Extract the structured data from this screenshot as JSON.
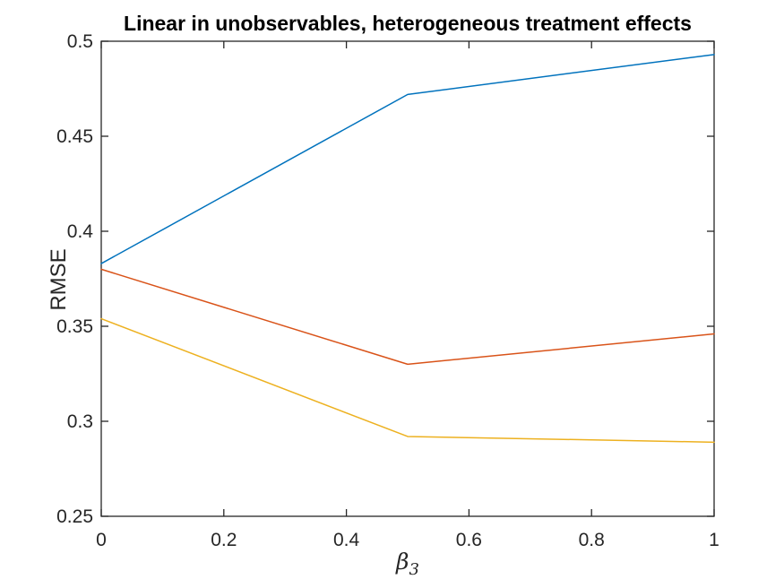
{
  "chart_data": {
    "type": "line",
    "title": "Linear in unobservables, heterogeneous treatment effects",
    "ylabel": "RMSE",
    "xlabel": "β",
    "xlabel_subscript": "3",
    "x": [
      0,
      0.5,
      1
    ],
    "series": [
      {
        "color": "#0072BD",
        "values": [
          0.383,
          0.472,
          0.493
        ]
      },
      {
        "color": "#D95319",
        "values": [
          0.38,
          0.33,
          0.346
        ]
      },
      {
        "color": "#EDB120",
        "values": [
          0.354,
          0.292,
          0.289
        ]
      }
    ],
    "xlim": [
      0,
      1
    ],
    "ylim": [
      0.25,
      0.5
    ],
    "xticks": [
      0,
      0.2,
      0.4,
      0.6,
      0.8,
      1
    ],
    "xtick_labels": [
      "0",
      "0.2",
      "0.4",
      "0.6",
      "0.8",
      "1"
    ],
    "yticks": [
      0.25,
      0.3,
      0.35,
      0.4,
      0.45,
      0.5
    ],
    "ytick_labels": [
      "0.25",
      "0.3",
      "0.35",
      "0.4",
      "0.45",
      "0.5"
    ],
    "grid": false,
    "legend": "none",
    "axis_color": "#262626",
    "line_width": 1.5
  }
}
